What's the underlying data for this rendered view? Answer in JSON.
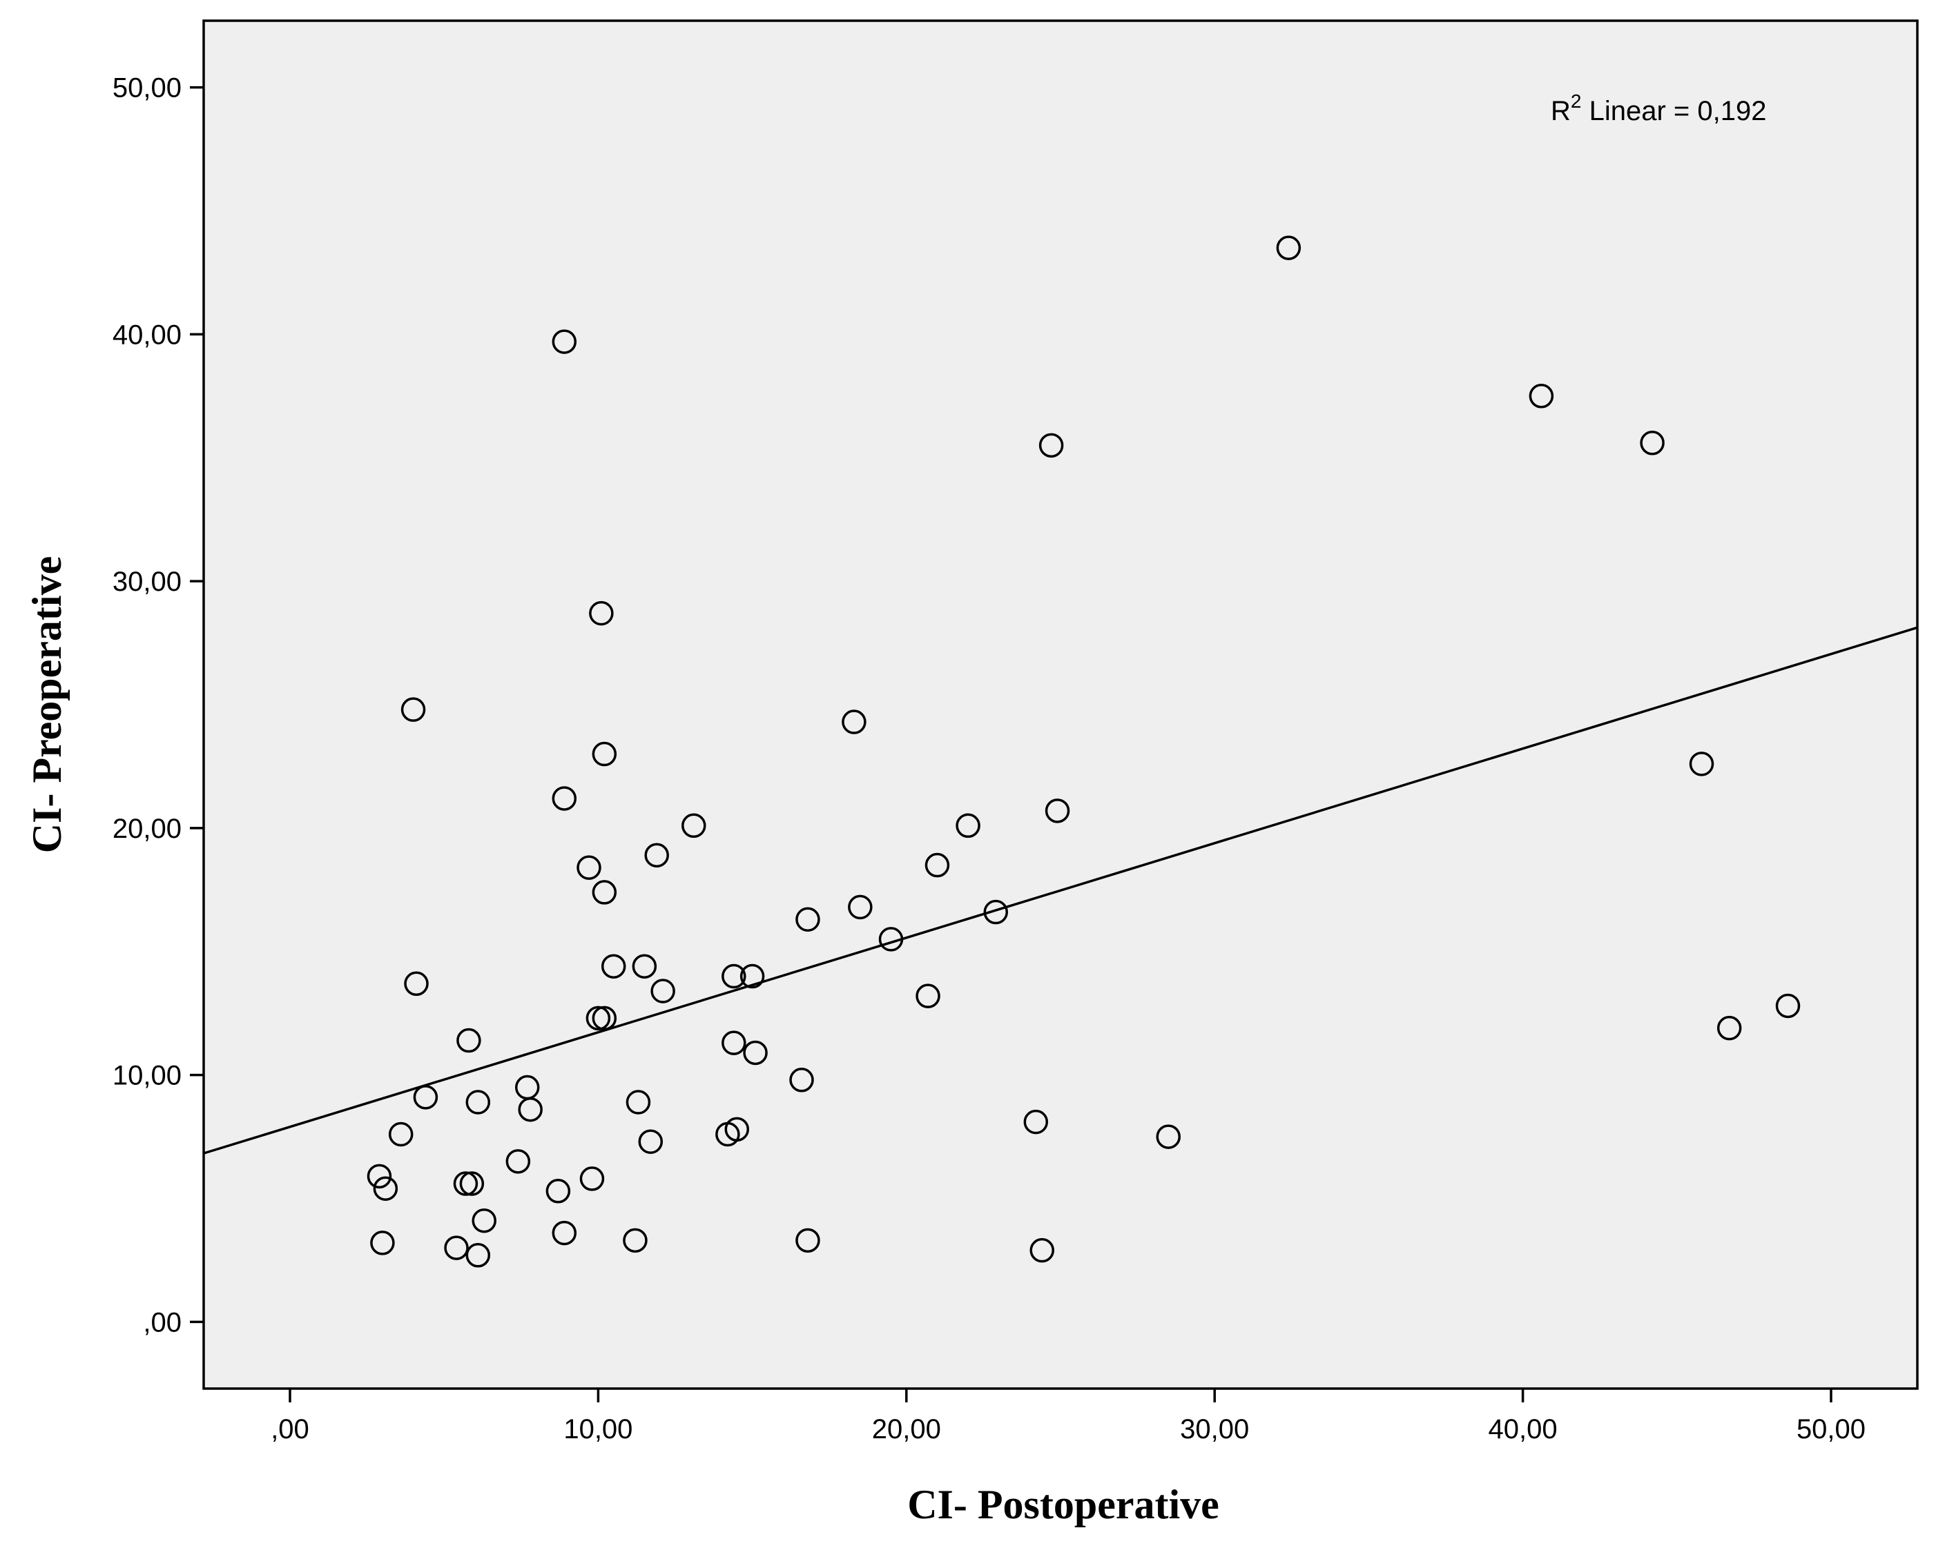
{
  "chart_data": {
    "type": "scatter",
    "xlabel": "CI- Postoperative",
    "ylabel": "CI- Preoperative",
    "xlim": [
      -2.8,
      52.8
    ],
    "ylim": [
      -2.7,
      52.7
    ],
    "x_ticks": [
      0,
      10,
      20,
      30,
      40,
      50
    ],
    "y_ticks": [
      0,
      10,
      20,
      30,
      40,
      50
    ],
    "x_tick_labels": [
      ",00",
      "10,00",
      "20,00",
      "30,00",
      "40,00",
      "50,00"
    ],
    "y_tick_labels": [
      ",00",
      "10,00",
      "20,00",
      "30,00",
      "40,00",
      "50,00"
    ],
    "grid": false,
    "fit_line": {
      "type": "linear",
      "intercept": 7.9,
      "slope": 0.383
    },
    "annotation": {
      "base": "R",
      "superscript": "2",
      "text": " Linear = 0,192"
    },
    "points": [
      {
        "x": 32.4,
        "y": 43.5
      },
      {
        "x": 8.9,
        "y": 39.7
      },
      {
        "x": 40.6,
        "y": 37.5
      },
      {
        "x": 44.2,
        "y": 35.6
      },
      {
        "x": 24.7,
        "y": 35.5
      },
      {
        "x": 10.1,
        "y": 28.7
      },
      {
        "x": 4.0,
        "y": 24.8
      },
      {
        "x": 18.3,
        "y": 24.3
      },
      {
        "x": 10.2,
        "y": 23.0
      },
      {
        "x": 45.8,
        "y": 22.6
      },
      {
        "x": 8.9,
        "y": 21.2
      },
      {
        "x": 24.9,
        "y": 20.7
      },
      {
        "x": 13.1,
        "y": 20.1
      },
      {
        "x": 22.0,
        "y": 20.1
      },
      {
        "x": 11.9,
        "y": 18.9
      },
      {
        "x": 21.0,
        "y": 18.5
      },
      {
        "x": 9.7,
        "y": 18.4
      },
      {
        "x": 10.2,
        "y": 17.4
      },
      {
        "x": 18.5,
        "y": 16.8
      },
      {
        "x": 22.9,
        "y": 16.6
      },
      {
        "x": 16.8,
        "y": 16.3
      },
      {
        "x": 19.5,
        "y": 15.5
      },
      {
        "x": 10.5,
        "y": 14.4
      },
      {
        "x": 11.5,
        "y": 14.4
      },
      {
        "x": 14.4,
        "y": 14.0
      },
      {
        "x": 15.0,
        "y": 14.0
      },
      {
        "x": 4.1,
        "y": 13.7
      },
      {
        "x": 12.1,
        "y": 13.4
      },
      {
        "x": 20.7,
        "y": 13.2
      },
      {
        "x": 48.6,
        "y": 12.8
      },
      {
        "x": 10.0,
        "y": 12.3
      },
      {
        "x": 10.2,
        "y": 12.3
      },
      {
        "x": 46.7,
        "y": 11.9
      },
      {
        "x": 5.8,
        "y": 11.4
      },
      {
        "x": 14.4,
        "y": 11.3
      },
      {
        "x": 15.1,
        "y": 10.9
      },
      {
        "x": 16.6,
        "y": 9.8
      },
      {
        "x": 7.7,
        "y": 9.5
      },
      {
        "x": 4.4,
        "y": 9.1
      },
      {
        "x": 6.1,
        "y": 8.9
      },
      {
        "x": 11.3,
        "y": 8.9
      },
      {
        "x": 7.8,
        "y": 8.6
      },
      {
        "x": 24.2,
        "y": 8.1
      },
      {
        "x": 14.5,
        "y": 7.8
      },
      {
        "x": 3.6,
        "y": 7.6
      },
      {
        "x": 14.2,
        "y": 7.6
      },
      {
        "x": 28.5,
        "y": 7.5
      },
      {
        "x": 11.7,
        "y": 7.3
      },
      {
        "x": 7.4,
        "y": 6.5
      },
      {
        "x": 2.9,
        "y": 5.9
      },
      {
        "x": 9.8,
        "y": 5.8
      },
      {
        "x": 5.7,
        "y": 5.6
      },
      {
        "x": 5.9,
        "y": 5.6
      },
      {
        "x": 3.1,
        "y": 5.4
      },
      {
        "x": 8.7,
        "y": 5.3
      },
      {
        "x": 6.3,
        "y": 4.1
      },
      {
        "x": 8.9,
        "y": 3.6
      },
      {
        "x": 11.2,
        "y": 3.3
      },
      {
        "x": 16.8,
        "y": 3.3
      },
      {
        "x": 3.0,
        "y": 3.2
      },
      {
        "x": 5.4,
        "y": 3.0
      },
      {
        "x": 24.4,
        "y": 2.9
      },
      {
        "x": 6.1,
        "y": 2.7
      }
    ]
  }
}
